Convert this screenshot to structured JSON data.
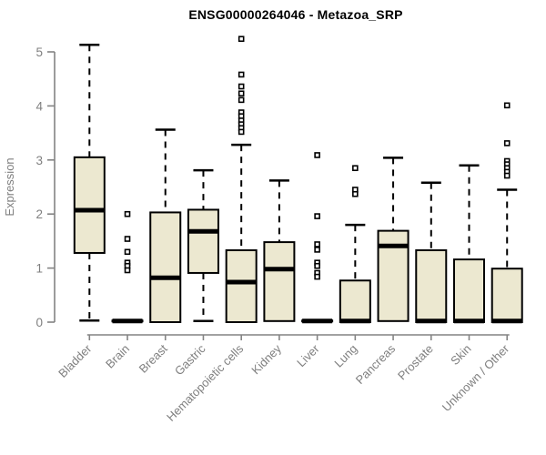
{
  "chart_data": {
    "type": "boxplot",
    "title": "ENSG00000264046 - Metazoa_SRP",
    "ylabel": "Expression",
    "xlabel": "",
    "ylim": [
      0,
      5
    ],
    "yticks": [
      0,
      1,
      2,
      3,
      4,
      5
    ],
    "grid": false,
    "legend": "none",
    "categories": [
      "Bladder",
      "Brain",
      "Breast",
      "Gastric",
      "Hematopoietic cells",
      "Kidney",
      "Liver",
      "Lung",
      "Pancreas",
      "Prostate",
      "Skin",
      "Unknown / Other"
    ],
    "series": [
      {
        "name": "Bladder",
        "whisker_low": 0.03,
        "q1": 1.28,
        "median": 2.07,
        "q3": 3.05,
        "whisker_high": 5.13,
        "outliers": []
      },
      {
        "name": "Brain",
        "whisker_low": 0.02,
        "q1": 0.02,
        "median": 0.02,
        "q3": 0.03,
        "whisker_high": 0.03,
        "outliers": [
          2.0,
          1.54,
          1.3,
          1.1,
          1.04,
          0.96
        ]
      },
      {
        "name": "Breast",
        "whisker_low": 0.0,
        "q1": 0.0,
        "median": 0.82,
        "q3": 2.03,
        "whisker_high": 3.56,
        "outliers": []
      },
      {
        "name": "Gastric",
        "whisker_low": 0.02,
        "q1": 0.91,
        "median": 1.68,
        "q3": 2.08,
        "whisker_high": 2.81,
        "outliers": []
      },
      {
        "name": "Hematopoietic cells",
        "whisker_low": 0.0,
        "q1": 0.0,
        "median": 0.74,
        "q3": 1.33,
        "whisker_high": 3.28,
        "outliers": [
          5.24,
          4.58,
          4.36,
          4.23,
          4.11,
          3.88,
          3.81,
          3.73,
          3.66,
          3.59,
          3.52
        ]
      },
      {
        "name": "Kidney",
        "whisker_low": 0.02,
        "q1": 0.02,
        "median": 0.98,
        "q3": 1.48,
        "whisker_high": 2.62,
        "outliers": []
      },
      {
        "name": "Liver",
        "whisker_low": 0.02,
        "q1": 0.02,
        "median": 0.02,
        "q3": 0.03,
        "whisker_high": 0.03,
        "outliers": [
          3.09,
          1.96,
          1.44,
          1.34,
          1.1,
          1.04,
          0.91,
          0.84
        ]
      },
      {
        "name": "Lung",
        "whisker_low": 0.0,
        "q1": 0.0,
        "median": 0.02,
        "q3": 0.77,
        "whisker_high": 1.8,
        "outliers": [
          2.85,
          2.45,
          2.37
        ]
      },
      {
        "name": "Pancreas",
        "whisker_low": 0.02,
        "q1": 0.02,
        "median": 1.41,
        "q3": 1.69,
        "whisker_high": 3.04,
        "outliers": []
      },
      {
        "name": "Prostate",
        "whisker_low": 0.0,
        "q1": 0.0,
        "median": 0.02,
        "q3": 1.33,
        "whisker_high": 2.58,
        "outliers": []
      },
      {
        "name": "Skin",
        "whisker_low": 0.0,
        "q1": 0.0,
        "median": 0.02,
        "q3": 1.16,
        "whisker_high": 2.9,
        "outliers": []
      },
      {
        "name": "Unknown / Other",
        "whisker_low": 0.0,
        "q1": 0.0,
        "median": 0.02,
        "q3": 0.99,
        "whisker_high": 2.45,
        "outliers": [
          4.01,
          3.31,
          2.98,
          2.92,
          2.85,
          2.78,
          2.71
        ]
      }
    ],
    "colors": {
      "box_fill": "#ece8d0",
      "box_border": "#000000",
      "median": "#000000",
      "whisker": "#000000",
      "outlier": "#000000",
      "axis": "#848484",
      "tick_label": "#7f7f7f",
      "axis_label": "#7f7f7f",
      "title": "#000000",
      "background": "#ffffff"
    }
  }
}
